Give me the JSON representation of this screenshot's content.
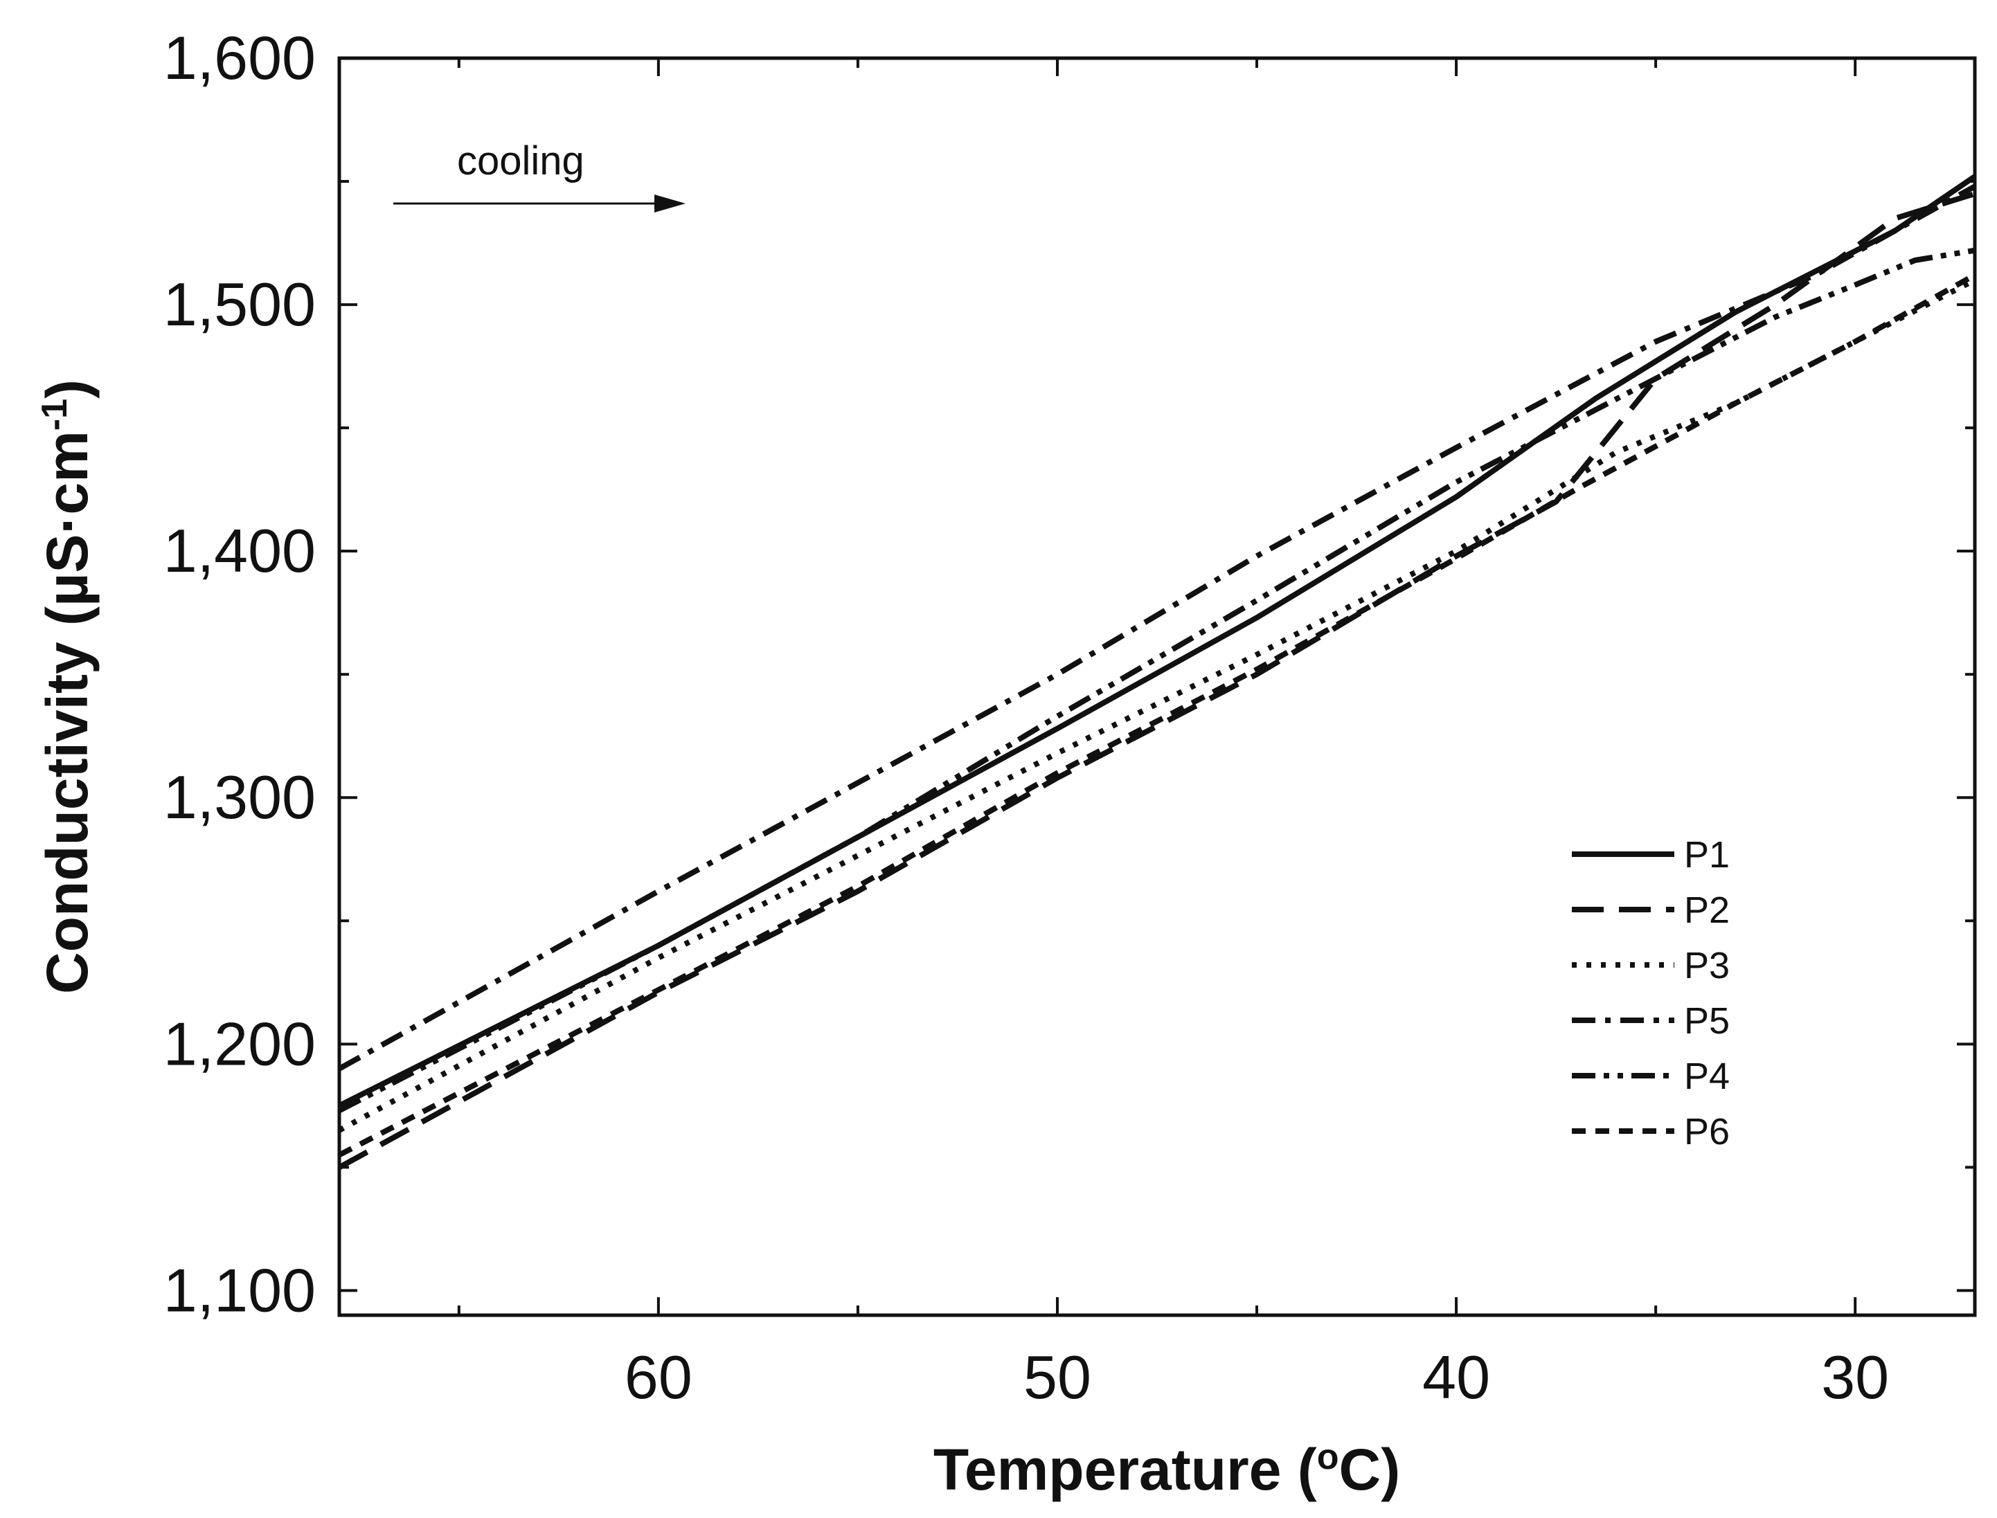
{
  "chart_data": {
    "type": "line",
    "title": "",
    "xlabel": "Temperature",
    "xlabel_unit_parts": [
      "(",
      "o",
      "C)"
    ],
    "ylabel": "Conductivity",
    "ylabel_unit_parts": [
      "(µS·cm",
      "-1",
      ")"
    ],
    "x_reversed": true,
    "xlim": [
      68,
      27
    ],
    "ylim": [
      1090,
      1600
    ],
    "x_ticks": [
      60,
      50,
      40,
      30
    ],
    "x_tick_labels": [
      "60",
      "50",
      "40",
      "30"
    ],
    "x_minor_ticks": [
      65,
      55,
      45,
      35
    ],
    "y_ticks": [
      1100,
      1200,
      1300,
      1400,
      1500,
      1600
    ],
    "y_tick_labels": [
      "1,100",
      "1,200",
      "1,300",
      "1,400",
      "1,500",
      "1,600"
    ],
    "y_minor_ticks": [
      1150,
      1250,
      1350,
      1450,
      1550
    ],
    "annotation": {
      "text": "cooling",
      "arrow_direction": "right"
    },
    "legend_position": "lower-right",
    "series": [
      {
        "name": "P1",
        "dash": "solid",
        "x": [
          68,
          60,
          50,
          45,
          40,
          36.5,
          33,
          29,
          27
        ],
        "y": [
          1175,
          1240,
          1328,
          1373,
          1422,
          1462,
          1497,
          1530,
          1552
        ]
      },
      {
        "name": "P2",
        "dash": "long-dash",
        "x": [
          68,
          60,
          55,
          50,
          45,
          40,
          37.5,
          35,
          32,
          29,
          27
        ],
        "y": [
          1150,
          1221,
          1262,
          1308,
          1350,
          1398,
          1420,
          1470,
          1500,
          1535,
          1545
        ]
      },
      {
        "name": "P3",
        "dash": "dot",
        "x": [
          68,
          60,
          50,
          45,
          40,
          36,
          33,
          30,
          27
        ],
        "y": [
          1165,
          1235,
          1318,
          1358,
          1400,
          1440,
          1460,
          1485,
          1510
        ]
      },
      {
        "name": "P5",
        "dash": "dash-dot",
        "x": [
          68,
          60,
          50,
          45,
          40,
          35,
          31,
          29,
          27
        ],
        "y": [
          1190,
          1262,
          1350,
          1398,
          1442,
          1485,
          1512,
          1530,
          1548
        ]
      },
      {
        "name": "P4",
        "dash": "dash-dot-dot",
        "x": [
          68,
          60,
          55,
          50,
          45,
          40,
          35,
          32,
          30,
          28.5,
          27
        ],
        "y": [
          1173,
          1240,
          1284,
          1333,
          1380,
          1428,
          1470,
          1495,
          1508,
          1518,
          1522
        ]
      },
      {
        "name": "P6",
        "dash": "short-dash",
        "x": [
          68,
          60,
          55,
          50,
          45,
          40,
          37,
          33,
          30,
          27
        ],
        "y": [
          1155,
          1222,
          1264,
          1310,
          1352,
          1397,
          1425,
          1460,
          1485,
          1512
        ]
      }
    ]
  }
}
